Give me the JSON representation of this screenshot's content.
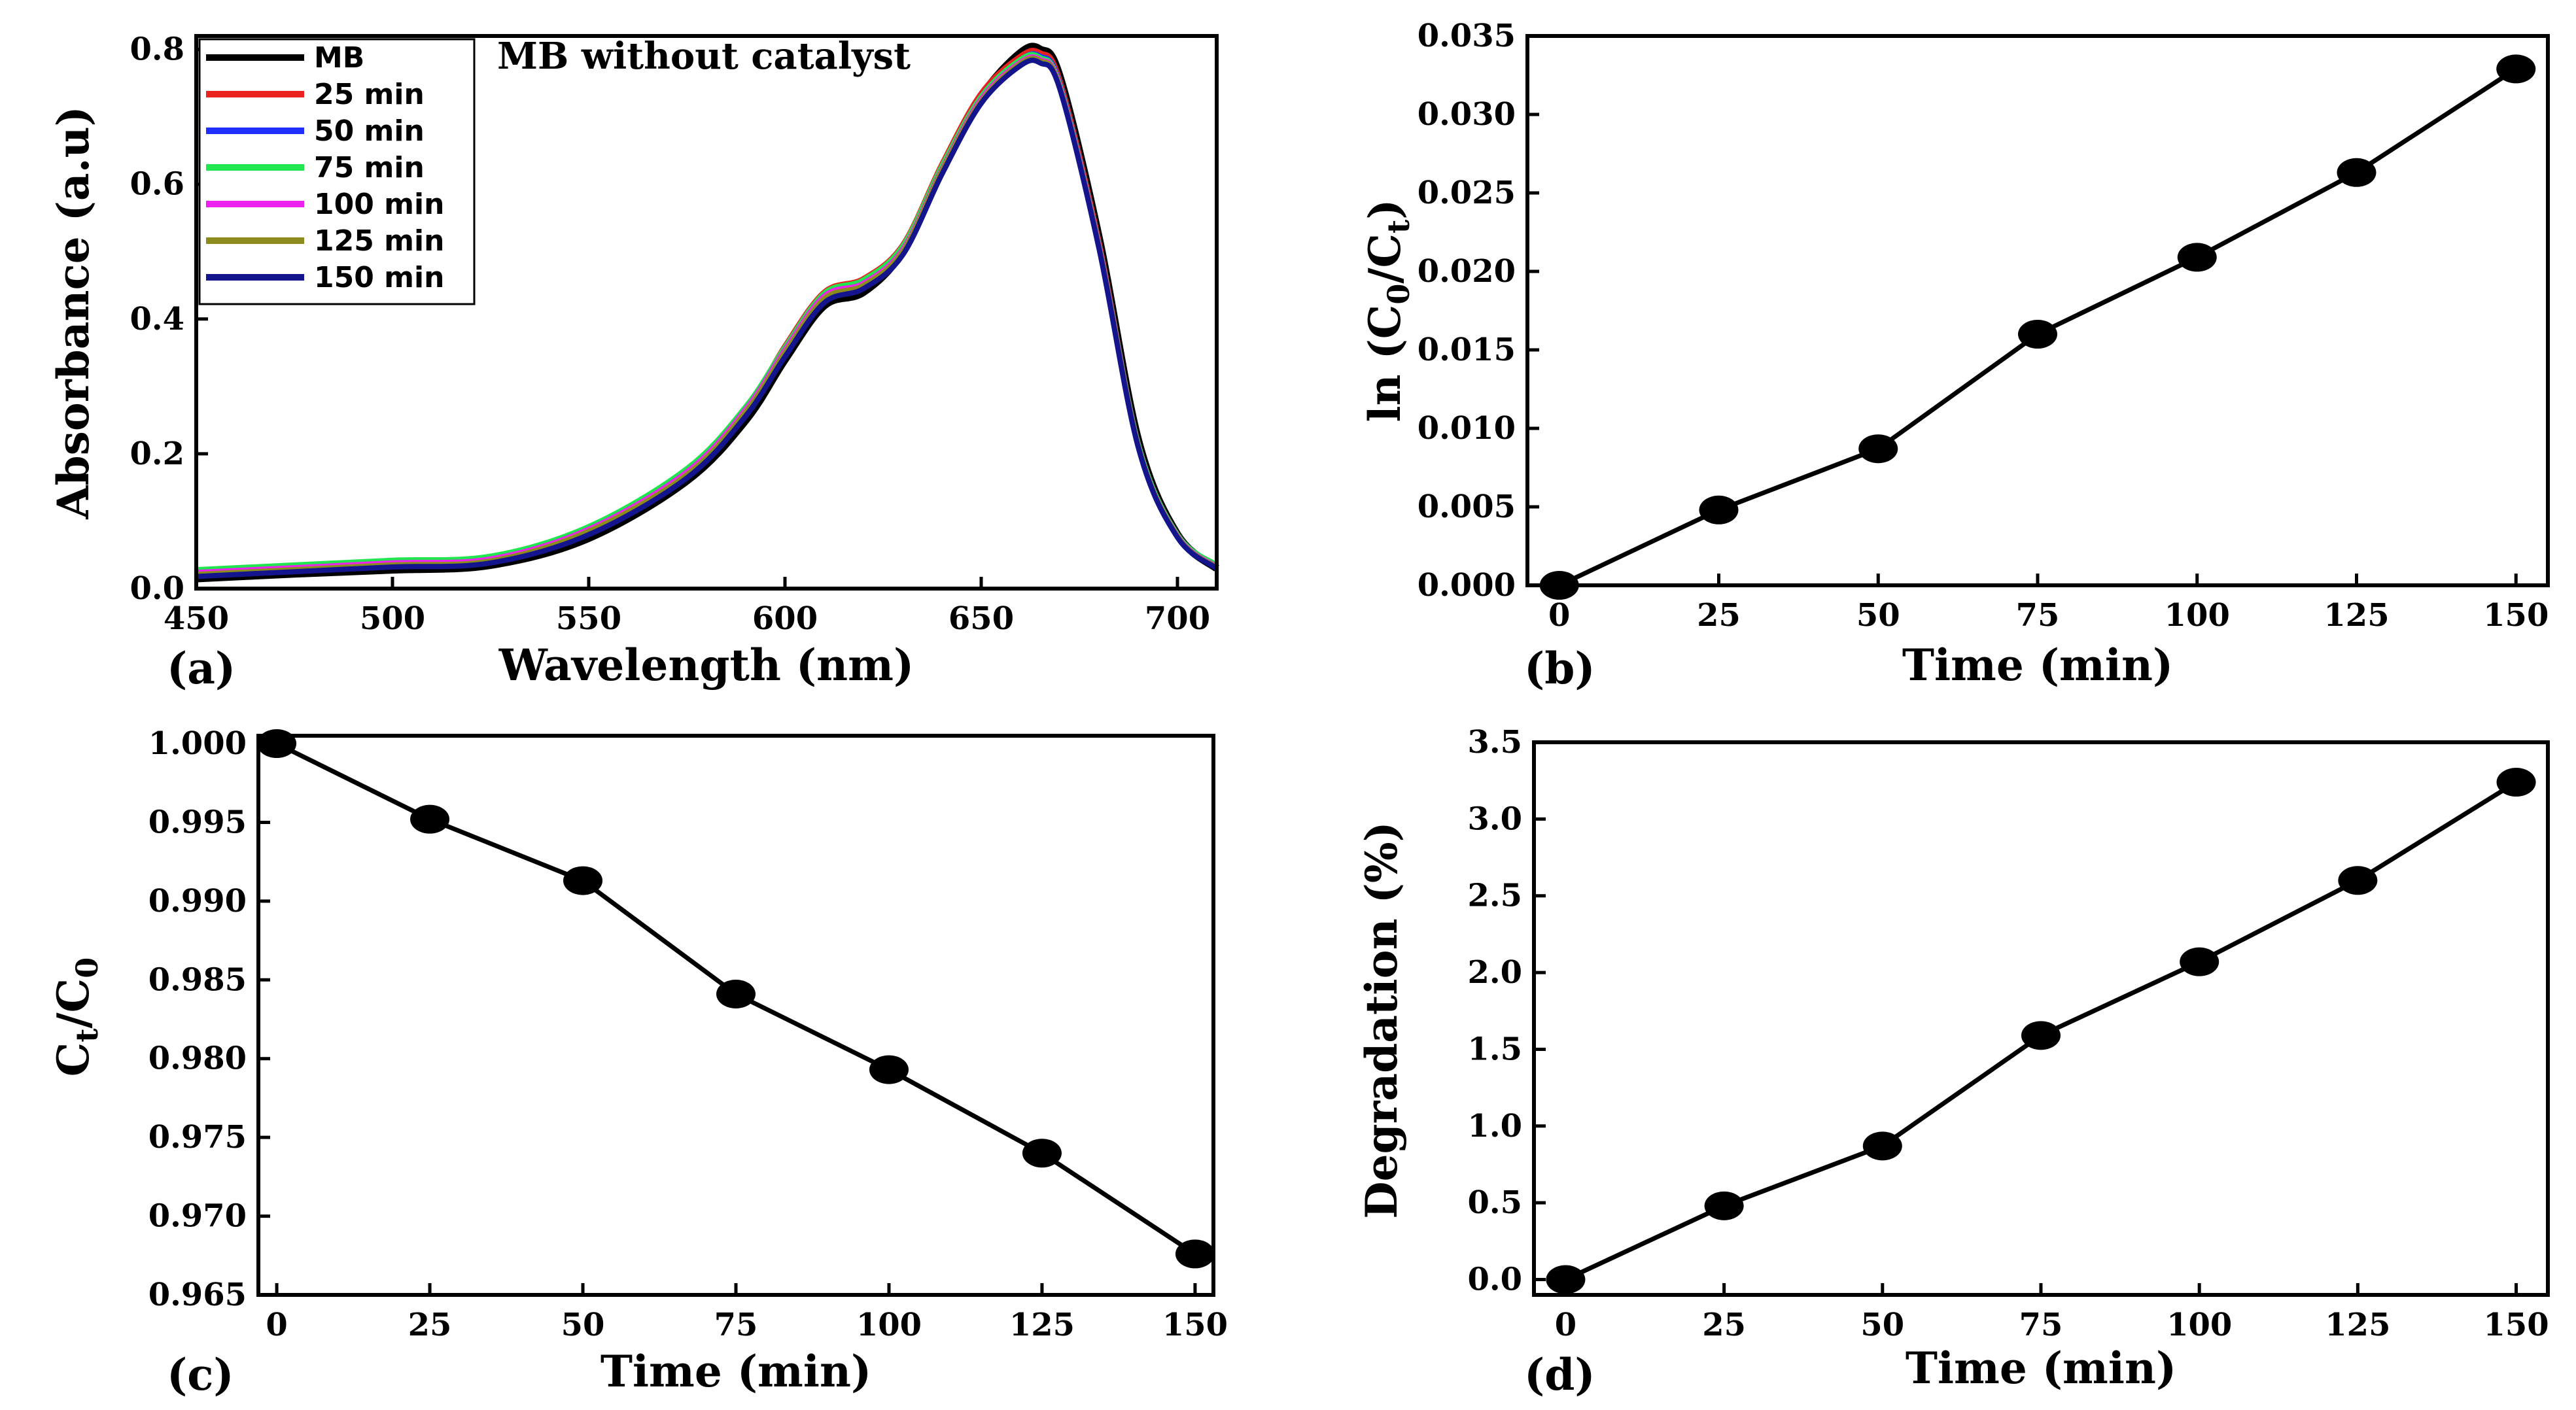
{
  "chart_data": [
    {
      "id": "a",
      "type": "line",
      "panel_label": "(a)",
      "title": "MB without catalyst",
      "xlabel": "Wavelength (nm)",
      "ylabel": "Absorbance (a.u)",
      "xlim": [
        450,
        710
      ],
      "ylim": [
        0,
        0.82
      ],
      "xticks": [
        450,
        500,
        550,
        600,
        650,
        700
      ],
      "yticks": [
        0.0,
        0.2,
        0.4,
        0.6,
        0.8
      ],
      "xtick_labels": [
        "450",
        "500",
        "550",
        "600",
        "650",
        "700"
      ],
      "ytick_labels": [
        "0.0",
        "0.2",
        "0.4",
        "0.6",
        "0.8"
      ],
      "legend_position": "top-left",
      "x": [
        450,
        475,
        500,
        525,
        550,
        575,
        590,
        600,
        610,
        620,
        630,
        640,
        650,
        660,
        665,
        670,
        680,
        690,
        700,
        710
      ],
      "series": [
        {
          "name": "MB",
          "color": "#000000",
          "values": [
            0.015,
            0.022,
            0.028,
            0.035,
            0.075,
            0.16,
            0.25,
            0.34,
            0.42,
            0.44,
            0.5,
            0.62,
            0.73,
            0.795,
            0.8,
            0.76,
            0.52,
            0.22,
            0.08,
            0.03
          ]
        },
        {
          "name": "25 min",
          "color": "#e8221f",
          "values": [
            0.02,
            0.028,
            0.034,
            0.04,
            0.085,
            0.17,
            0.265,
            0.36,
            0.44,
            0.46,
            0.51,
            0.63,
            0.735,
            0.79,
            0.795,
            0.755,
            0.515,
            0.215,
            0.078,
            0.03
          ]
        },
        {
          "name": "50 min",
          "color": "#1f2fff",
          "values": [
            0.022,
            0.03,
            0.036,
            0.042,
            0.087,
            0.172,
            0.267,
            0.355,
            0.435,
            0.455,
            0.505,
            0.625,
            0.73,
            0.785,
            0.79,
            0.75,
            0.51,
            0.212,
            0.077,
            0.03
          ]
        },
        {
          "name": "75 min",
          "color": "#22e64f",
          "values": [
            0.028,
            0.035,
            0.042,
            0.048,
            0.092,
            0.178,
            0.27,
            0.358,
            0.438,
            0.458,
            0.508,
            0.627,
            0.73,
            0.785,
            0.788,
            0.748,
            0.51,
            0.215,
            0.08,
            0.035
          ]
        },
        {
          "name": "100 min",
          "color": "#ee22ee",
          "values": [
            0.024,
            0.031,
            0.038,
            0.044,
            0.088,
            0.173,
            0.266,
            0.354,
            0.434,
            0.453,
            0.503,
            0.622,
            0.726,
            0.781,
            0.785,
            0.746,
            0.508,
            0.212,
            0.078,
            0.032
          ]
        },
        {
          "name": "125 min",
          "color": "#8c8c1e",
          "values": [
            0.021,
            0.028,
            0.035,
            0.041,
            0.085,
            0.169,
            0.262,
            0.35,
            0.43,
            0.45,
            0.5,
            0.62,
            0.723,
            0.779,
            0.783,
            0.744,
            0.506,
            0.211,
            0.077,
            0.031
          ]
        },
        {
          "name": "150 min",
          "color": "#14148c",
          "values": [
            0.018,
            0.025,
            0.032,
            0.038,
            0.08,
            0.164,
            0.256,
            0.344,
            0.424,
            0.445,
            0.495,
            0.615,
            0.72,
            0.776,
            0.78,
            0.742,
            0.505,
            0.21,
            0.076,
            0.03
          ]
        }
      ]
    },
    {
      "id": "b",
      "type": "line",
      "panel_label": "(b)",
      "xlabel": "Time (min)",
      "ylabel_parts": {
        "pre": "ln (C",
        "sub1": "0",
        "mid": "/C",
        "sub2": "t",
        "post": ")"
      },
      "xlim": [
        -5,
        155
      ],
      "ylim": [
        0,
        0.035
      ],
      "xticks": [
        0,
        25,
        50,
        75,
        100,
        125,
        150
      ],
      "yticks": [
        0.0,
        0.005,
        0.01,
        0.015,
        0.02,
        0.025,
        0.03,
        0.035
      ],
      "xtick_labels": [
        "0",
        "25",
        "50",
        "75",
        "100",
        "125",
        "150"
      ],
      "ytick_labels": [
        "0.000",
        "0.005",
        "0.010",
        "0.015",
        "0.020",
        "0.025",
        "0.030",
        "0.035"
      ],
      "x": [
        0,
        25,
        50,
        75,
        100,
        125,
        150
      ],
      "values": [
        0.0,
        0.0048,
        0.0087,
        0.016,
        0.0209,
        0.0263,
        0.0329
      ]
    },
    {
      "id": "c",
      "type": "line",
      "panel_label": "(c)",
      "xlabel": "Time (min)",
      "ylabel_parts": {
        "pre": "C",
        "sub1": "t",
        "mid": "/C",
        "sub2": "0",
        "post": ""
      },
      "xlim": [
        -3,
        153
      ],
      "ylim": [
        0.965,
        1.0005
      ],
      "xticks": [
        0,
        25,
        50,
        75,
        100,
        125,
        150
      ],
      "yticks": [
        0.965,
        0.97,
        0.975,
        0.98,
        0.985,
        0.99,
        0.995,
        1.0
      ],
      "xtick_labels": [
        "0",
        "25",
        "50",
        "75",
        "100",
        "125",
        "150"
      ],
      "ytick_labels": [
        "0.965",
        "0.970",
        "0.975",
        "0.980",
        "0.985",
        "0.990",
        "0.995",
        "1.000"
      ],
      "x": [
        0,
        25,
        50,
        75,
        100,
        125,
        150
      ],
      "values": [
        1.0,
        0.9952,
        0.9913,
        0.9841,
        0.9793,
        0.974,
        0.9676
      ]
    },
    {
      "id": "d",
      "type": "line",
      "panel_label": "(d)",
      "xlabel": "Time (min)",
      "ylabel": "Degradation (%)",
      "xlim": [
        -5,
        155
      ],
      "ylim": [
        -0.1,
        3.5
      ],
      "xticks": [
        0,
        25,
        50,
        75,
        100,
        125,
        150
      ],
      "yticks": [
        0.0,
        0.5,
        1.0,
        1.5,
        2.0,
        2.5,
        3.0,
        3.5
      ],
      "xtick_labels": [
        "0",
        "25",
        "50",
        "75",
        "100",
        "125",
        "150"
      ],
      "ytick_labels": [
        "0.0",
        "0.5",
        "1.0",
        "1.5",
        "2.0",
        "2.5",
        "3.0",
        "3.5"
      ],
      "x": [
        0,
        25,
        50,
        75,
        100,
        125,
        150
      ],
      "values": [
        0.0,
        0.48,
        0.87,
        1.59,
        2.07,
        2.6,
        3.24
      ]
    }
  ]
}
